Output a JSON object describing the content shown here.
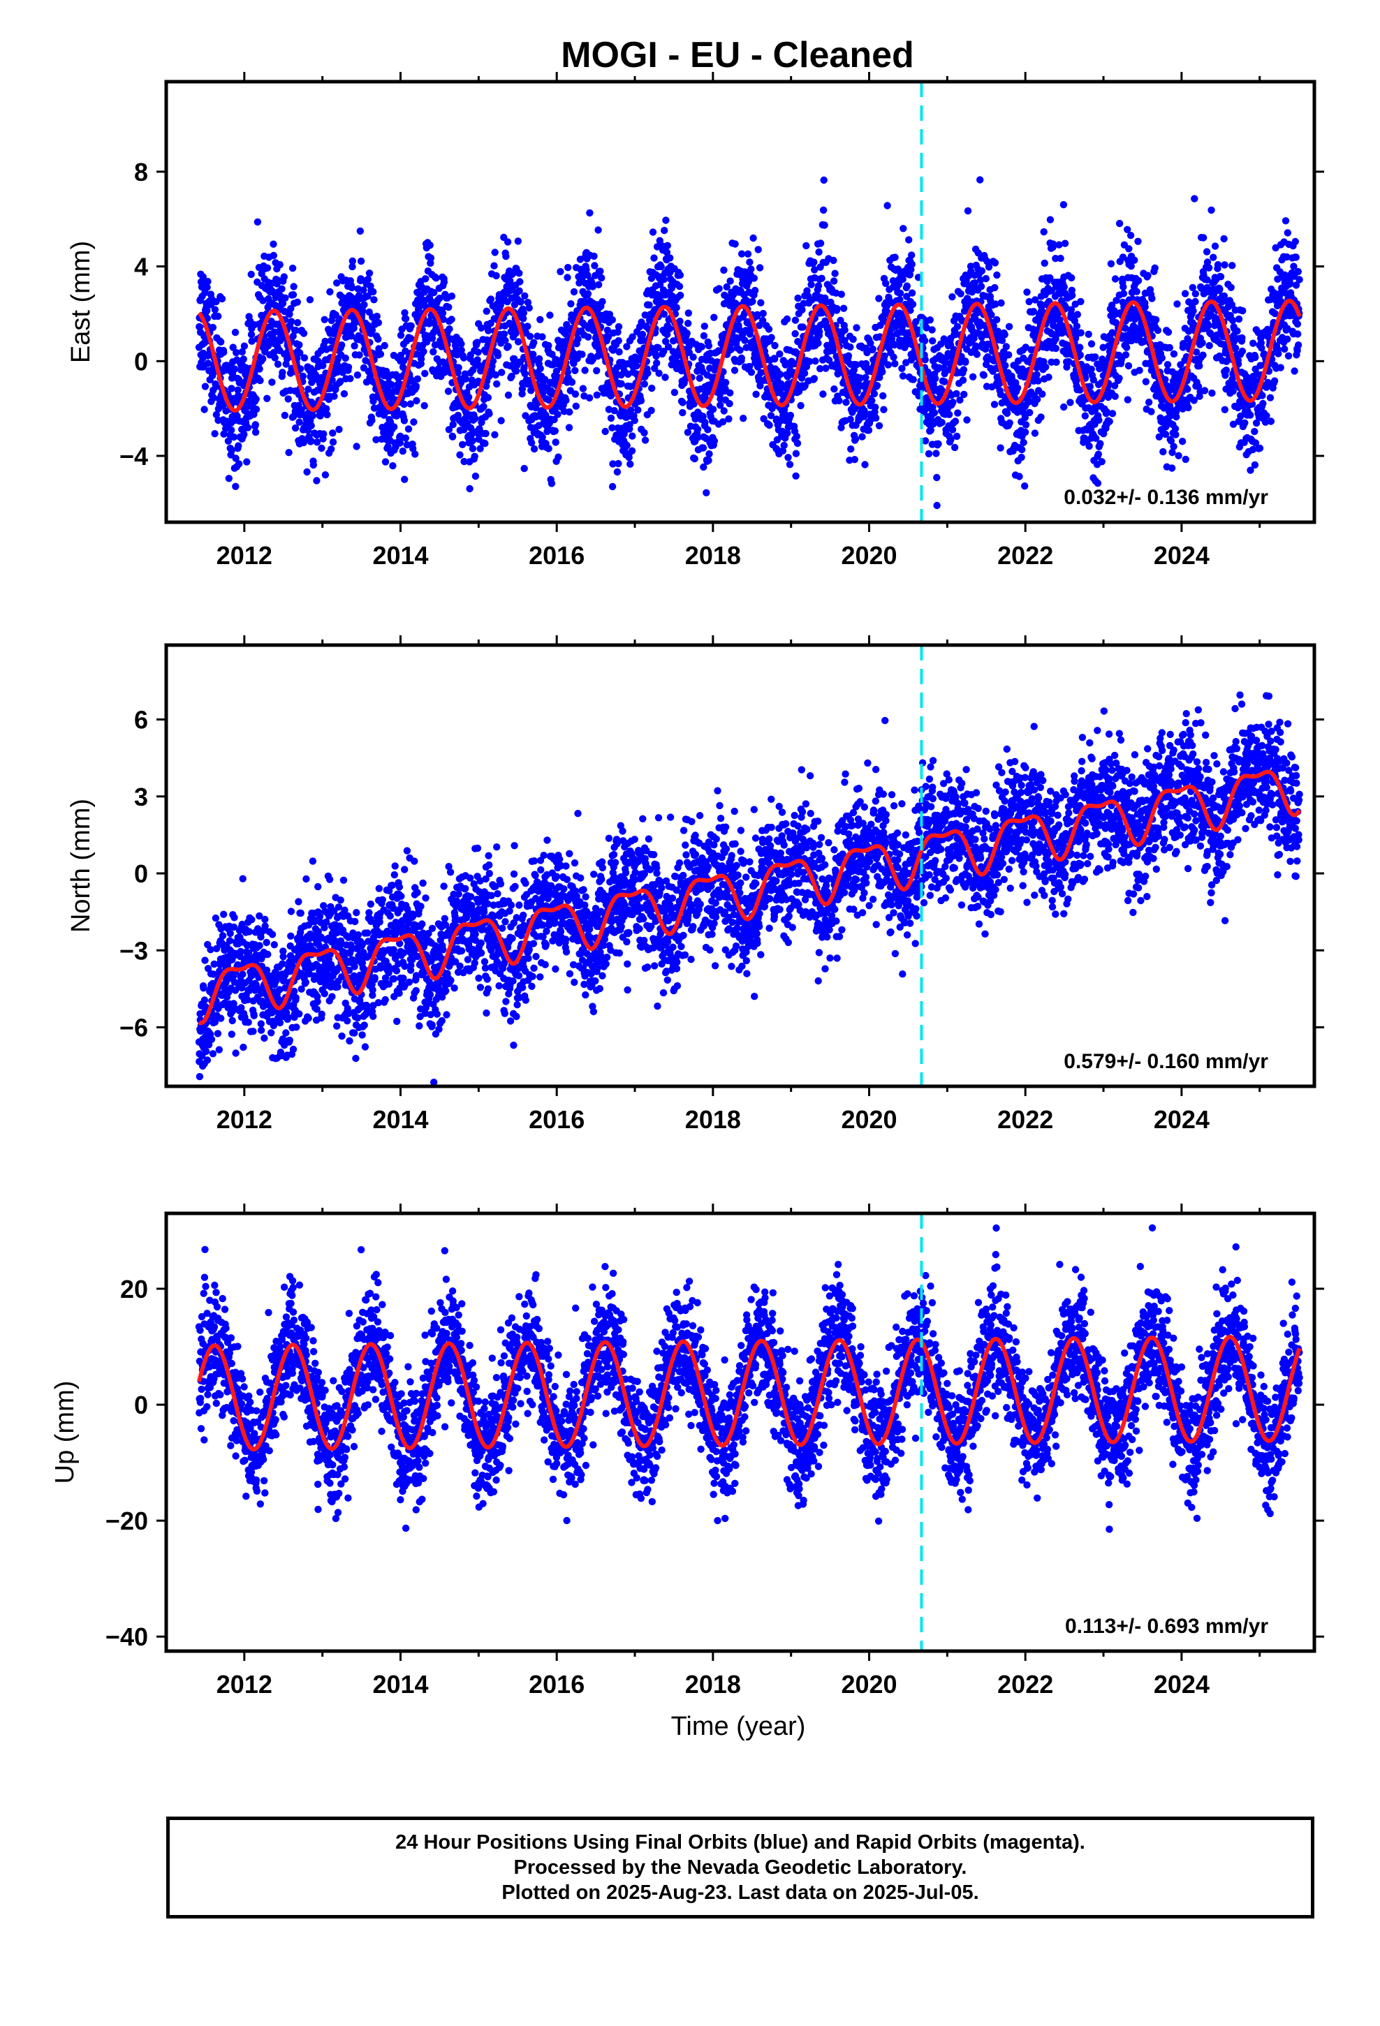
{
  "title": "MOGI  - EU - Cleaned",
  "colors": {
    "points": "#0000ff",
    "model": "#ff1a1a",
    "event_line": "#00e5ee",
    "frame": "#000000"
  },
  "x_tick_labels": [
    "2012",
    "2014",
    "2016",
    "2018",
    "2020",
    "2022",
    "2024"
  ],
  "xlabel": "Time (year)",
  "footer": {
    "line1": "24 Hour Positions Using Final Orbits (blue) and Rapid Orbits (magenta).",
    "line2": "Processed by the Nevada Geodetic Laboratory.",
    "line3": "Plotted on 2025-Aug-23. Last data on 2025-Jul-05."
  },
  "chart_data": [
    {
      "type": "scatter",
      "component": "east",
      "ylabel": "East (mm)",
      "rate_label": "0.032+/- 0.136 mm/yr",
      "xlim": [
        2011.0,
        2025.7
      ],
      "ylim": [
        -6.8,
        11.8
      ],
      "x_ticks": [
        2012,
        2014,
        2016,
        2018,
        2020,
        2022,
        2024
      ],
      "y_ticks": [
        -4,
        0,
        4,
        8
      ],
      "y_tick_labels": [
        "−4",
        "0",
        "4",
        "8"
      ],
      "event_line_x": 2020.67,
      "data_start": 2011.42,
      "data_end": 2025.51,
      "grid": false,
      "series": [
        {
          "kind": "points",
          "color": "#0000ff",
          "model": {
            "offset": 0.0,
            "rate": 0.032,
            "amplitude": 2.1,
            "peak_phase": 0.38,
            "noise": 1.4
          }
        },
        {
          "kind": "model_line",
          "color": "#ff1a1a"
        }
      ]
    },
    {
      "type": "scatter",
      "component": "north",
      "ylabel": "North (mm)",
      "rate_label": "0.579+/- 0.160 mm/yr",
      "xlim": [
        2011.0,
        2025.7
      ],
      "ylim": [
        -8.3,
        8.9
      ],
      "x_ticks": [
        2012,
        2014,
        2016,
        2018,
        2020,
        2022,
        2024
      ],
      "y_ticks": [
        -6,
        -3,
        0,
        3,
        6
      ],
      "y_tick_labels": [
        "−6",
        "−3",
        "0",
        "3",
        "6"
      ],
      "event_line_x": 2020.67,
      "data_start": 2011.42,
      "data_end": 2025.51,
      "grid": false,
      "series": [
        {
          "kind": "points",
          "color": "#0000ff",
          "model": {
            "offset": -4.6,
            "rate": 0.579,
            "amplitude": 0.9,
            "peak_phase": 0.95,
            "noise": 1.2
          }
        },
        {
          "kind": "model_line",
          "color": "#ff1a1a"
        }
      ]
    },
    {
      "type": "scatter",
      "component": "up",
      "ylabel": "Up (mm)",
      "rate_label": "0.113+/- 0.693 mm/yr",
      "xlim": [
        2011.0,
        2025.7
      ],
      "ylim": [
        -42.5,
        33.0
      ],
      "x_ticks": [
        2012,
        2014,
        2016,
        2018,
        2020,
        2022,
        2024
      ],
      "y_ticks": [
        -40,
        -20,
        0,
        20
      ],
      "y_tick_labels": [
        "−40",
        "−20",
        "0",
        "20"
      ],
      "event_line_x": 2020.67,
      "data_start": 2011.42,
      "data_end": 2025.51,
      "grid": false,
      "series": [
        {
          "kind": "points",
          "color": "#0000ff",
          "model": {
            "offset": 1.2,
            "rate": 0.113,
            "amplitude": 9.0,
            "peak_phase": 0.62,
            "noise": 5.0
          }
        },
        {
          "kind": "model_line",
          "color": "#ff1a1a"
        }
      ]
    }
  ]
}
